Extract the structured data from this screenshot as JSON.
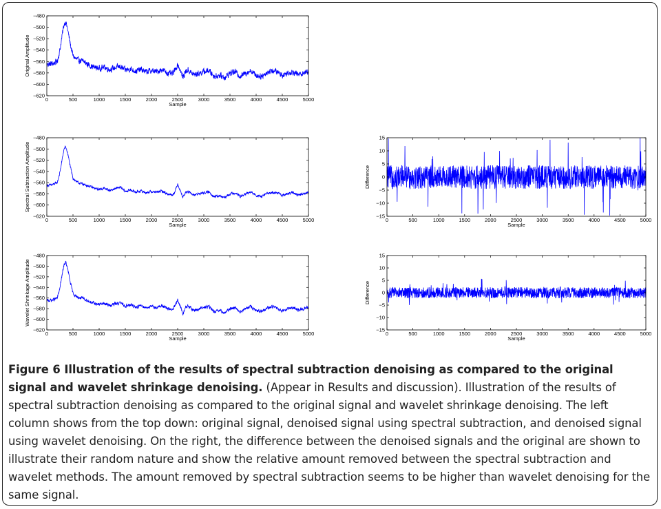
{
  "caption": {
    "bold": "Figure 6 Illustration of the results of spectral subtraction denoising as compared to the original signal and wavelet shrinkage denoising.",
    "text": " (Appear in Results and discussion). Illustration of the results of spectral subtraction denoising as compared to the original signal and wavelet shrinkage denoising. The left column shows from the top down: original signal, denoised signal using spectral subtraction, and denoised signal using wavelet denoising. On the right, the difference between the denoised signals and the original are shown to illustrate their random nature and show the relative amount removed between the spectral subtraction and wavelet methods. The amount removed by spectral subtraction seems to be higher than wavelet denoising for the same signal."
  },
  "chart_data": [
    {
      "id": "original",
      "type": "line",
      "xlabel": "Sample",
      "ylabel": "Original Amplitude",
      "xlim": [
        0,
        5000
      ],
      "ylim": [
        -620,
        -480
      ],
      "xticks": [
        0,
        500,
        1000,
        1500,
        2000,
        2500,
        3000,
        3500,
        4000,
        4500,
        5000
      ],
      "yticks": [
        -620,
        -600,
        -580,
        -560,
        -540,
        -520,
        -500,
        -480
      ],
      "color": "#0000ff",
      "series": [
        {
          "x": [
            0,
            100,
            200,
            250,
            300,
            330,
            360,
            400,
            450,
            500,
            550,
            600,
            700,
            800,
            900,
            1000,
            1100,
            1200,
            1300,
            1400,
            1500,
            1600,
            1700,
            1800,
            1900,
            2000,
            2100,
            2200,
            2300,
            2400,
            2450,
            2500,
            2550,
            2600,
            2650,
            2700,
            2800,
            2900,
            3000,
            3100,
            3200,
            3300,
            3400,
            3500,
            3600,
            3700,
            3800,
            3900,
            4000,
            4100,
            4200,
            4300,
            4400,
            4500,
            4600,
            4700,
            4800,
            4900,
            5000
          ],
          "y": [
            -565,
            -564,
            -560,
            -540,
            -510,
            -495,
            -490,
            -505,
            -530,
            -550,
            -555,
            -558,
            -560,
            -566,
            -570,
            -572,
            -570,
            -574,
            -571,
            -569,
            -575,
            -573,
            -577,
            -574,
            -578,
            -576,
            -578,
            -574,
            -580,
            -582,
            -575,
            -565,
            -575,
            -588,
            -578,
            -575,
            -583,
            -581,
            -578,
            -576,
            -586,
            -584,
            -588,
            -580,
            -578,
            -586,
            -580,
            -576,
            -584,
            -586,
            -580,
            -576,
            -578,
            -584,
            -580,
            -578,
            -583,
            -580,
            -577
          ],
          "noise": 7
        }
      ]
    },
    {
      "id": "spectral",
      "type": "line",
      "xlabel": "Sample",
      "ylabel": "Spectral Subtraction Amplitude",
      "xlim": [
        0,
        5000
      ],
      "ylim": [
        -620,
        -480
      ],
      "xticks": [
        0,
        500,
        1000,
        1500,
        2000,
        2500,
        3000,
        3500,
        4000,
        4500,
        5000
      ],
      "yticks": [
        -620,
        -600,
        -580,
        -560,
        -540,
        -520,
        -500,
        -480
      ],
      "color": "#0000ff",
      "series": [
        {
          "x": [
            0,
            100,
            200,
            250,
            300,
            330,
            360,
            400,
            450,
            500,
            550,
            600,
            700,
            800,
            900,
            1000,
            1100,
            1200,
            1300,
            1400,
            1500,
            1600,
            1700,
            1800,
            1900,
            2000,
            2100,
            2200,
            2300,
            2400,
            2450,
            2500,
            2550,
            2600,
            2650,
            2700,
            2800,
            2900,
            3000,
            3100,
            3200,
            3300,
            3400,
            3500,
            3600,
            3700,
            3800,
            3900,
            4000,
            4100,
            4200,
            4300,
            4400,
            4500,
            4600,
            4700,
            4800,
            4900,
            5000
          ],
          "y": [
            -565,
            -564,
            -560,
            -542,
            -515,
            -500,
            -496,
            -508,
            -532,
            -552,
            -557,
            -560,
            -563,
            -566,
            -570,
            -572,
            -570,
            -574,
            -571,
            -568,
            -576,
            -573,
            -577,
            -575,
            -578,
            -576,
            -577,
            -575,
            -580,
            -582,
            -576,
            -562,
            -574,
            -586,
            -578,
            -576,
            -582,
            -580,
            -578,
            -577,
            -585,
            -584,
            -587,
            -580,
            -578,
            -585,
            -580,
            -577,
            -583,
            -585,
            -580,
            -577,
            -578,
            -583,
            -580,
            -578,
            -582,
            -580,
            -577
          ],
          "noise": 3
        }
      ]
    },
    {
      "id": "diff-spectral",
      "type": "line",
      "xlabel": "Sample",
      "ylabel": "Difference",
      "xlim": [
        0,
        5000
      ],
      "ylim": [
        -15,
        15
      ],
      "xticks": [
        0,
        500,
        1000,
        1500,
        2000,
        2500,
        3000,
        3500,
        4000,
        4500,
        5000
      ],
      "yticks": [
        -15,
        -10,
        -5,
        0,
        5,
        10,
        15
      ],
      "color": "#0000ff",
      "series": [
        {
          "x": [
            0,
            5000
          ],
          "y": [
            0,
            0
          ],
          "noise": 4.5,
          "peak": 15
        }
      ]
    },
    {
      "id": "wavelet",
      "type": "line",
      "xlabel": "Sample",
      "ylabel": "Wavelet Shrinkage Amplitude",
      "xlim": [
        0,
        5000
      ],
      "ylim": [
        -620,
        -480
      ],
      "xticks": [
        0,
        500,
        1000,
        1500,
        2000,
        2500,
        3000,
        3500,
        4000,
        4500,
        5000
      ],
      "yticks": [
        -620,
        -600,
        -580,
        -560,
        -540,
        -520,
        -500,
        -480
      ],
      "color": "#0000ff",
      "series": [
        {
          "x": [
            0,
            100,
            200,
            250,
            300,
            330,
            360,
            400,
            450,
            500,
            550,
            600,
            700,
            800,
            900,
            1000,
            1100,
            1200,
            1300,
            1400,
            1500,
            1600,
            1700,
            1800,
            1900,
            2000,
            2100,
            2200,
            2300,
            2400,
            2450,
            2500,
            2550,
            2600,
            2650,
            2700,
            2800,
            2900,
            3000,
            3100,
            3200,
            3300,
            3400,
            3500,
            3600,
            3700,
            3800,
            3900,
            4000,
            4100,
            4200,
            4300,
            4400,
            4500,
            4600,
            4700,
            4800,
            4900,
            5000
          ],
          "y": [
            -565,
            -564,
            -560,
            -541,
            -512,
            -497,
            -492,
            -506,
            -531,
            -551,
            -556,
            -559,
            -561,
            -566,
            -570,
            -572,
            -570,
            -574,
            -571,
            -569,
            -575,
            -573,
            -577,
            -574,
            -578,
            -576,
            -578,
            -574,
            -580,
            -582,
            -575,
            -564,
            -575,
            -590,
            -578,
            -575,
            -583,
            -581,
            -578,
            -576,
            -586,
            -584,
            -588,
            -580,
            -578,
            -586,
            -580,
            -576,
            -584,
            -586,
            -580,
            -576,
            -578,
            -584,
            -580,
            -578,
            -583,
            -580,
            -577
          ],
          "noise": 4
        }
      ]
    },
    {
      "id": "diff-wavelet",
      "type": "line",
      "xlabel": "Sample",
      "ylabel": "Difference",
      "xlim": [
        0,
        5000
      ],
      "ylim": [
        -15,
        15
      ],
      "xticks": [
        0,
        500,
        1000,
        1500,
        2000,
        2500,
        3000,
        3500,
        4000,
        4500,
        5000
      ],
      "yticks": [
        -15,
        -10,
        -5,
        0,
        5,
        10,
        15
      ],
      "color": "#0000ff",
      "series": [
        {
          "x": [
            0,
            5000
          ],
          "y": [
            0,
            0
          ],
          "noise": 2.2,
          "peak": 6
        }
      ]
    }
  ]
}
